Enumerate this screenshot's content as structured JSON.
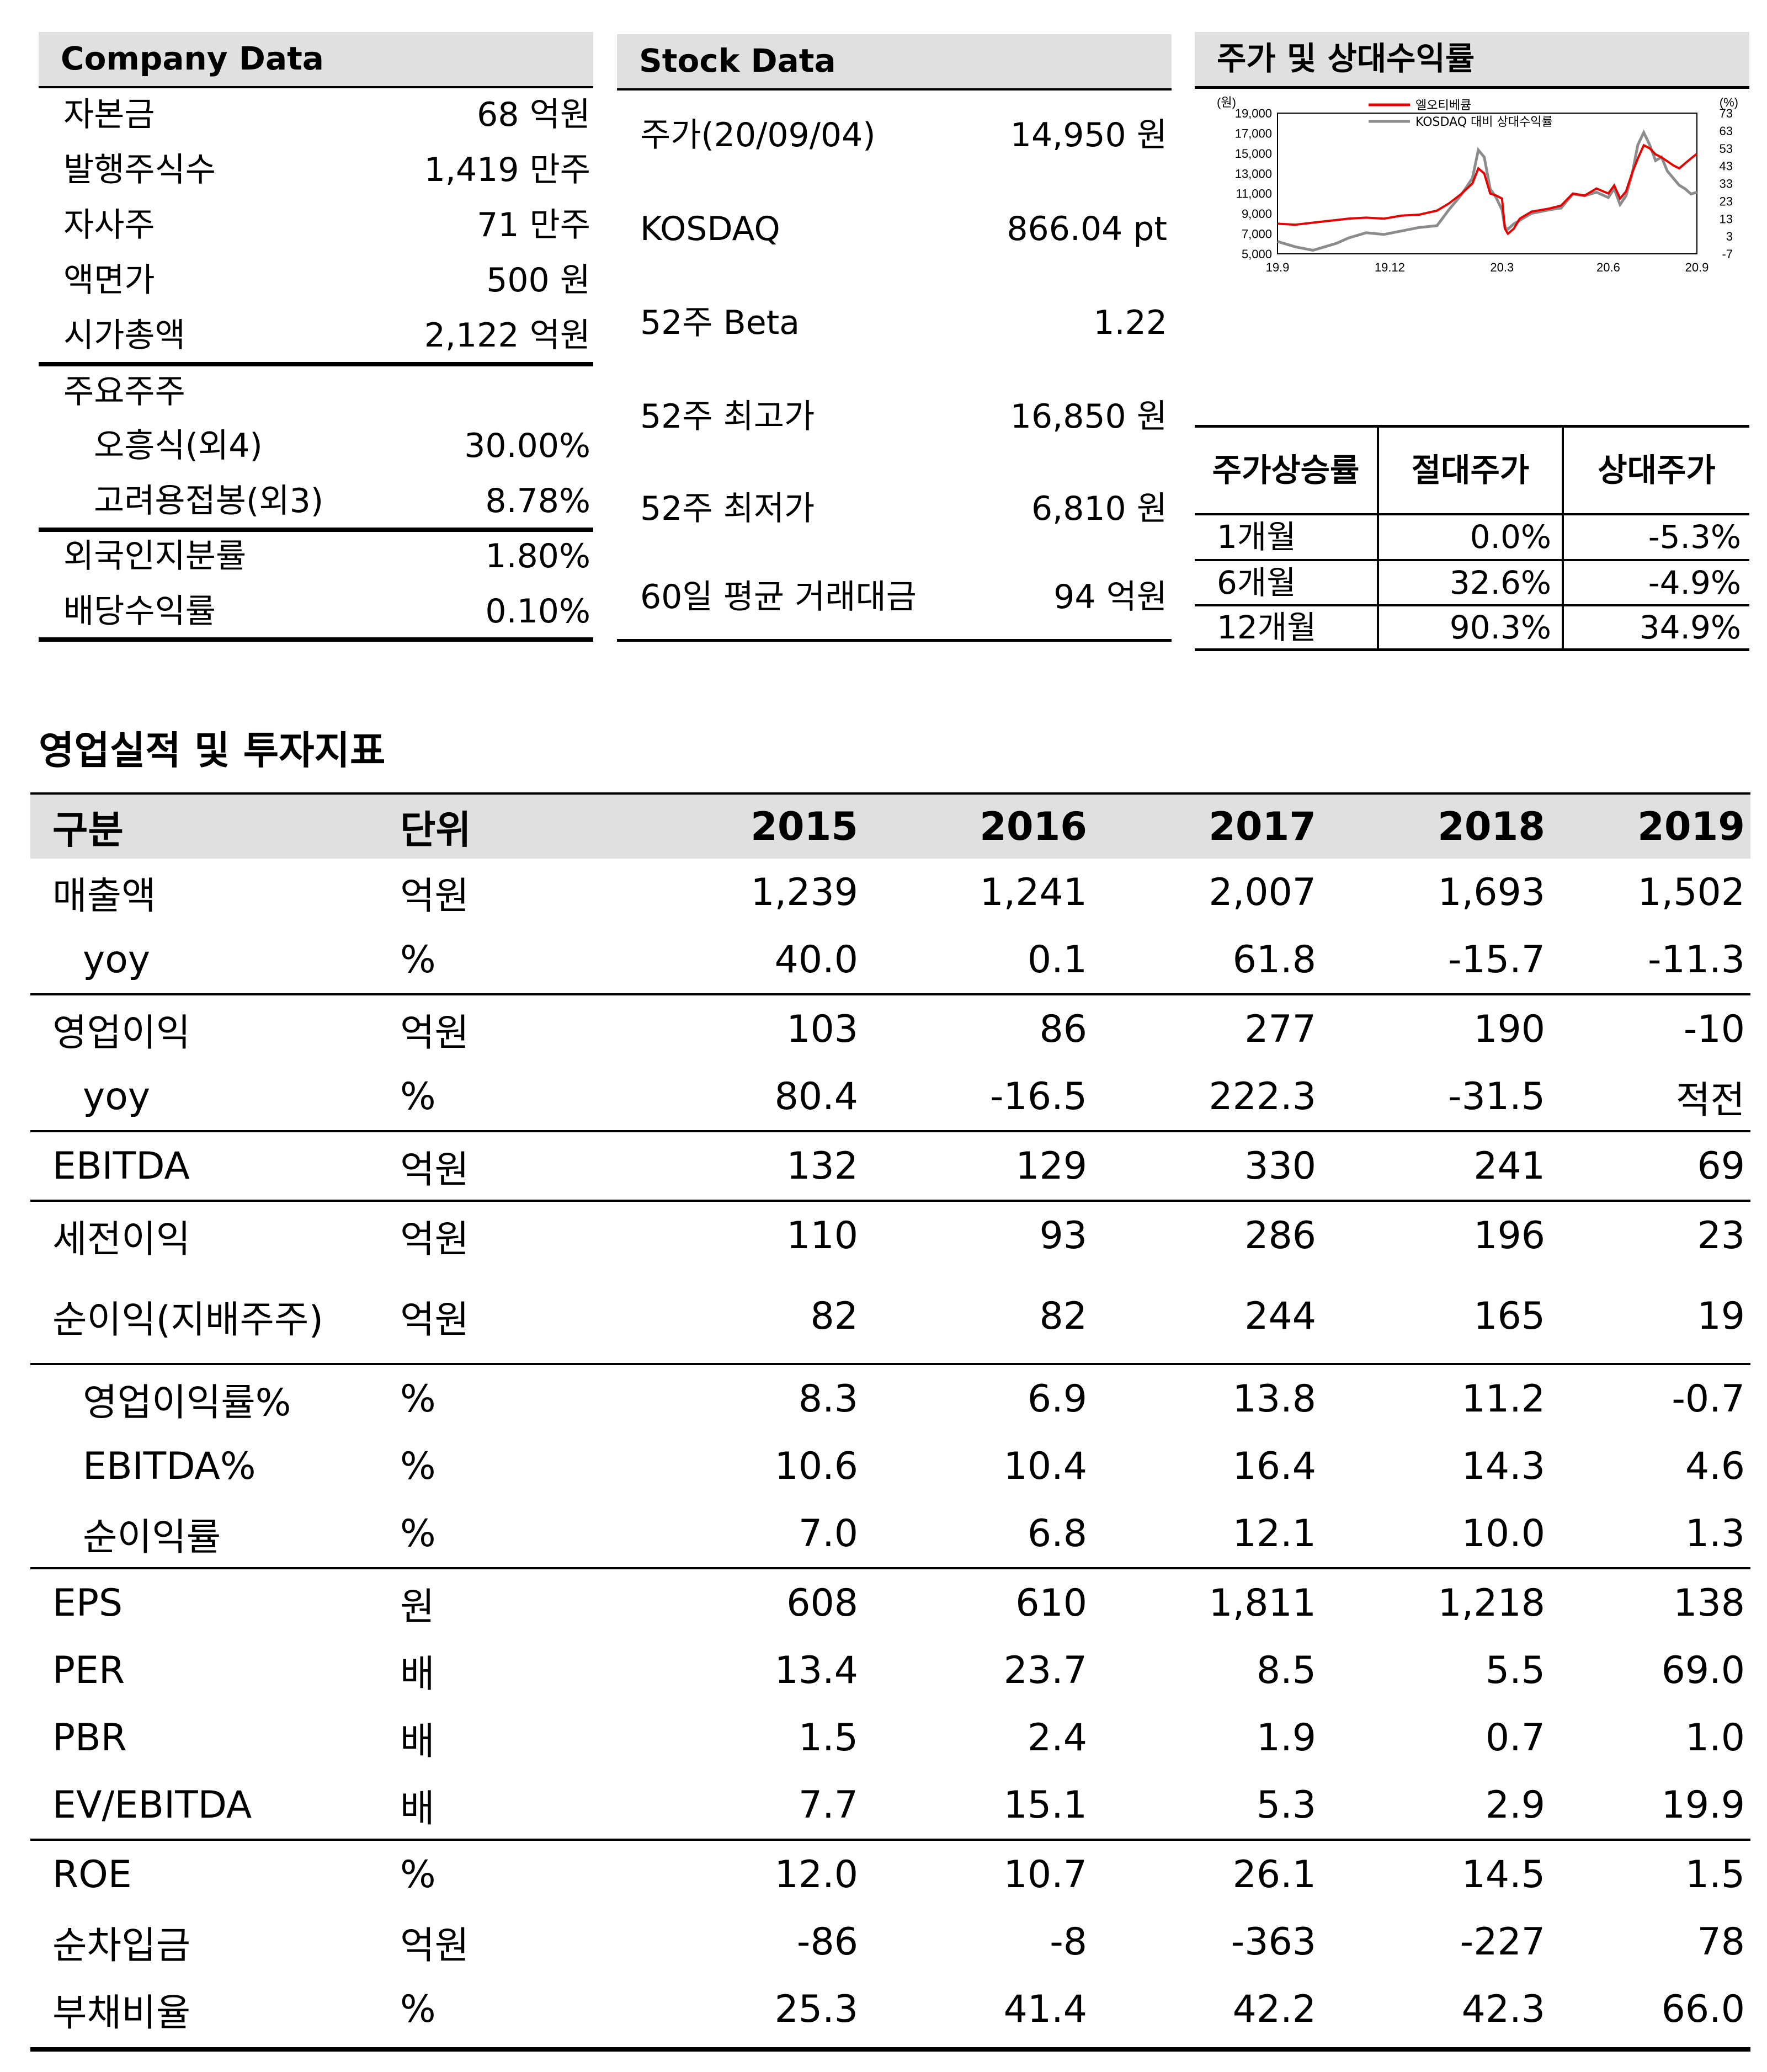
{
  "company": {
    "title": "Company Data",
    "rows": [
      {
        "label": "자본금",
        "value": "68 억원"
      },
      {
        "label": "발행주식수",
        "value": "1,419 만주"
      },
      {
        "label": "자사주",
        "value": "71 만주"
      },
      {
        "label": "액면가",
        "value": "500 원"
      },
      {
        "label": "시가총액",
        "value": "2,122 억원"
      }
    ],
    "holders_title": "주요주주",
    "holders": [
      {
        "label": "오흥식(외4)",
        "value": "30.00%"
      },
      {
        "label": "고려용접봉(외3)",
        "value": "8.78%"
      }
    ],
    "extra": [
      {
        "label": "외국인지분률",
        "value": "1.80%"
      },
      {
        "label": "배당수익률",
        "value": "0.10%"
      }
    ]
  },
  "stock": {
    "title": "Stock Data",
    "rows": [
      {
        "label": "주가(20/09/04)",
        "value": "14,950 원"
      },
      {
        "label": "KOSDAQ",
        "value": "866.04 pt"
      },
      {
        "label": "52주 Beta",
        "value": "1.22"
      },
      {
        "label": "52주 최고가",
        "value": "16,850 원"
      },
      {
        "label": "52주 최저가",
        "value": "6,810 원"
      },
      {
        "label": "60일 평균 거래대금",
        "value": "94 억원"
      }
    ]
  },
  "chart_panel": {
    "title": "주가 및 상대수익률",
    "perf_headers": [
      "주가상승률",
      "절대주가",
      "상대주가"
    ],
    "perf_rows": [
      [
        "1개월",
        "0.0%",
        "-5.3%"
      ],
      [
        "6개월",
        "32.6%",
        "-4.9%"
      ],
      [
        "12개월",
        "90.3%",
        "34.9%"
      ]
    ]
  },
  "chart_data": {
    "type": "line",
    "left_unit": "(원)",
    "right_unit": "(%)",
    "x_ticks": [
      "19.9",
      "19.12",
      "20.3",
      "20.6",
      "20.9"
    ],
    "y_left_ticks": [
      "19,000",
      "17,000",
      "15,000",
      "13,000",
      "11,000",
      "9,000",
      "7,000",
      "5,000"
    ],
    "y_right_ticks": [
      "73",
      "63",
      "53",
      "43",
      "33",
      "23",
      "13",
      "3",
      "-7"
    ],
    "ylim_left": [
      5000,
      19000
    ],
    "ylim_right": [
      -7,
      73
    ],
    "series": [
      {
        "name": "엘오티베큠",
        "color": "#e60000",
        "axis": "left",
        "points": [
          [
            0,
            8000
          ],
          [
            3,
            7900
          ],
          [
            6,
            8100
          ],
          [
            9,
            8300
          ],
          [
            12,
            8500
          ],
          [
            15,
            8600
          ],
          [
            18,
            8500
          ],
          [
            21,
            8800
          ],
          [
            24,
            8900
          ],
          [
            27,
            9300
          ],
          [
            29,
            10000
          ],
          [
            31,
            10900
          ],
          [
            33,
            12000
          ],
          [
            34,
            13500
          ],
          [
            35,
            13000
          ],
          [
            36,
            11000
          ],
          [
            37,
            10800
          ],
          [
            38,
            10500
          ],
          [
            38.5,
            7500
          ],
          [
            39,
            7000
          ],
          [
            40,
            7500
          ],
          [
            41,
            8500
          ],
          [
            43,
            9200
          ],
          [
            46,
            9500
          ],
          [
            48,
            9800
          ],
          [
            50,
            11000
          ],
          [
            52,
            10800
          ],
          [
            54,
            11500
          ],
          [
            56,
            11000
          ],
          [
            57,
            11800
          ],
          [
            58,
            10500
          ],
          [
            59,
            11200
          ],
          [
            60,
            13000
          ],
          [
            61,
            14500
          ],
          [
            62,
            15800
          ],
          [
            63,
            15500
          ],
          [
            64,
            14900
          ],
          [
            65,
            14600
          ],
          [
            66,
            14200
          ],
          [
            67,
            13800
          ],
          [
            68,
            13500
          ],
          [
            69,
            14000
          ],
          [
            70,
            14500
          ],
          [
            71,
            14950
          ]
        ]
      },
      {
        "name": "KOSDAQ 대비 상대수익률",
        "color": "#8c8c8c",
        "axis": "right",
        "points": [
          [
            0,
            0
          ],
          [
            3,
            -3
          ],
          [
            6,
            -5
          ],
          [
            8,
            -3
          ],
          [
            10,
            -1
          ],
          [
            12,
            2
          ],
          [
            15,
            5
          ],
          [
            18,
            4
          ],
          [
            21,
            6
          ],
          [
            24,
            8
          ],
          [
            27,
            9
          ],
          [
            29,
            18
          ],
          [
            31,
            26
          ],
          [
            33,
            36
          ],
          [
            34,
            52
          ],
          [
            35,
            48
          ],
          [
            36,
            30
          ],
          [
            37,
            25
          ],
          [
            38,
            18
          ],
          [
            38.5,
            8
          ],
          [
            39,
            7
          ],
          [
            40,
            10
          ],
          [
            41,
            12
          ],
          [
            43,
            16
          ],
          [
            46,
            18
          ],
          [
            48,
            19
          ],
          [
            50,
            27
          ],
          [
            52,
            26
          ],
          [
            54,
            28
          ],
          [
            56,
            25
          ],
          [
            57,
            30
          ],
          [
            58,
            21
          ],
          [
            59,
            26
          ],
          [
            60,
            38
          ],
          [
            61,
            55
          ],
          [
            62,
            62
          ],
          [
            63,
            55
          ],
          [
            64,
            46
          ],
          [
            65,
            48
          ],
          [
            66,
            40
          ],
          [
            67,
            36
          ],
          [
            68,
            32
          ],
          [
            69,
            30
          ],
          [
            70,
            27
          ],
          [
            71,
            28
          ]
        ]
      }
    ]
  },
  "financials": {
    "section_title": "영업실적 및 투자지표",
    "headers": [
      "구분",
      "단위",
      "2015",
      "2016",
      "2017",
      "2018",
      "2019"
    ],
    "rows": [
      [
        "매출액",
        "억원",
        "1,239",
        "1,241",
        "2,007",
        "1,693",
        "1,502"
      ],
      [
        "yoy",
        "%",
        "40.0",
        "0.1",
        "61.8",
        "-15.7",
        "-11.3"
      ],
      [
        "영업이익",
        "억원",
        "103",
        "86",
        "277",
        "190",
        "-10"
      ],
      [
        "yoy",
        "%",
        "80.4",
        "-16.5",
        "222.3",
        "-31.5",
        "적전"
      ],
      [
        "EBITDA",
        "억원",
        "132",
        "129",
        "330",
        "241",
        "69"
      ],
      [
        "세전이익",
        "억원",
        "110",
        "93",
        "286",
        "196",
        "23"
      ],
      [
        "순이익(지배주주)",
        "억원",
        "82",
        "82",
        "244",
        "165",
        "19"
      ],
      [
        "영업이익률%",
        "%",
        "8.3",
        "6.9",
        "13.8",
        "11.2",
        "-0.7"
      ],
      [
        "EBITDA%",
        "%",
        "10.6",
        "10.4",
        "16.4",
        "14.3",
        "4.6"
      ],
      [
        "순이익률",
        "%",
        "7.0",
        "6.8",
        "12.1",
        "10.0",
        "1.3"
      ],
      [
        "EPS",
        "원",
        "608",
        "610",
        "1,811",
        "1,218",
        "138"
      ],
      [
        "PER",
        "배",
        "13.4",
        "23.7",
        "8.5",
        "5.5",
        "69.0"
      ],
      [
        "PBR",
        "배",
        "1.5",
        "2.4",
        "1.9",
        "0.7",
        "1.0"
      ],
      [
        "EV/EBITDA",
        "배",
        "7.7",
        "15.1",
        "5.3",
        "2.9",
        "19.9"
      ],
      [
        "ROE",
        "%",
        "12.0",
        "10.7",
        "26.1",
        "14.5",
        "1.5"
      ],
      [
        "순차입금",
        "억원",
        "-86",
        "-8",
        "-363",
        "-227",
        "78"
      ],
      [
        "부채비율",
        "%",
        "25.3",
        "41.4",
        "42.2",
        "42.3",
        "66.0"
      ]
    ]
  }
}
